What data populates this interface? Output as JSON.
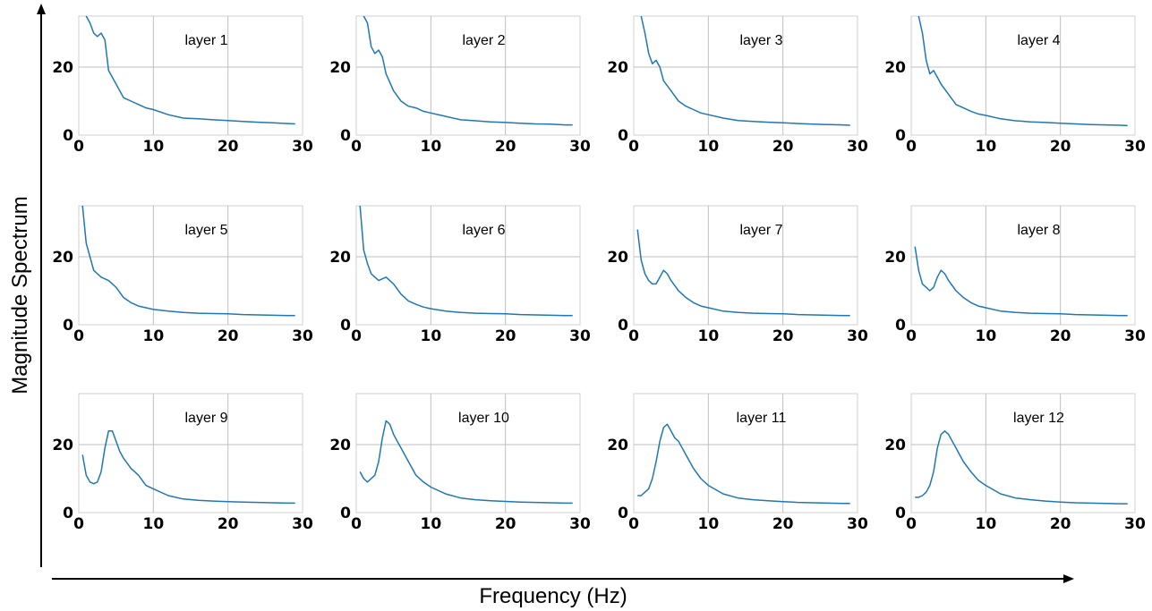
{
  "figure": {
    "xlabel": "Frequency (Hz)",
    "ylabel": "Magnitude Spectrum",
    "line_color": "#1f77b4",
    "grid": true,
    "xticks": [
      "0",
      "10",
      "20",
      "30"
    ],
    "yticks": [
      "0",
      "20"
    ]
  },
  "chart_data": [
    {
      "type": "line",
      "title": "layer 1",
      "xlim": [
        0,
        30
      ],
      "ylim": [
        0,
        35
      ],
      "x": [
        1.0,
        1.5,
        2.0,
        2.5,
        3.0,
        3.5,
        4.0,
        5.0,
        6.0,
        7.0,
        8.0,
        9.0,
        10.0,
        12.0,
        14.0,
        16.0,
        18.0,
        20.0,
        22.0,
        24.0,
        26.0,
        28.0,
        29.0
      ],
      "values": [
        35,
        33,
        30,
        29,
        30,
        28,
        19,
        15,
        11,
        10,
        9,
        8,
        7.5,
        6,
        5,
        4.8,
        4.5,
        4.3,
        4,
        3.8,
        3.6,
        3.4,
        3.3
      ]
    },
    {
      "type": "line",
      "title": "layer 2",
      "xlim": [
        0,
        30
      ],
      "ylim": [
        0,
        35
      ],
      "x": [
        1.0,
        1.5,
        2.0,
        2.5,
        3.0,
        3.5,
        4.0,
        5.0,
        6.0,
        7.0,
        8.0,
        9.0,
        10.0,
        12.0,
        14.0,
        16.0,
        18.0,
        20.0,
        22.0,
        24.0,
        26.0,
        28.0,
        29.0
      ],
      "values": [
        35,
        33,
        26,
        24,
        25,
        23,
        18,
        13,
        10,
        8.5,
        8,
        7,
        6.5,
        5.5,
        4.5,
        4.2,
        3.9,
        3.7,
        3.5,
        3.3,
        3.2,
        3.0,
        3.0
      ]
    },
    {
      "type": "line",
      "title": "layer 3",
      "xlim": [
        0,
        30
      ],
      "ylim": [
        0,
        35
      ],
      "x": [
        1.0,
        1.5,
        2.0,
        2.5,
        3.0,
        3.5,
        4.0,
        5.0,
        6.0,
        7.0,
        8.0,
        9.0,
        10.0,
        12.0,
        14.0,
        16.0,
        18.0,
        20.0,
        22.0,
        24.0,
        26.0,
        28.0,
        29.0
      ],
      "values": [
        35,
        30,
        24,
        21,
        22,
        20,
        16,
        13,
        10,
        8.5,
        7.5,
        6.5,
        6,
        5,
        4.3,
        4,
        3.8,
        3.6,
        3.4,
        3.2,
        3.1,
        3.0,
        2.9
      ]
    },
    {
      "type": "line",
      "title": "layer 4",
      "xlim": [
        0,
        30
      ],
      "ylim": [
        0,
        35
      ],
      "x": [
        1.0,
        1.5,
        2.0,
        2.5,
        3.0,
        3.5,
        4.0,
        5.0,
        6.0,
        7.0,
        8.0,
        9.0,
        10.0,
        12.0,
        14.0,
        16.0,
        18.0,
        20.0,
        22.0,
        24.0,
        26.0,
        28.0,
        29.0
      ],
      "values": [
        35,
        30,
        22,
        18,
        19,
        17,
        15,
        12,
        9,
        8,
        7,
        6.2,
        5.8,
        4.8,
        4.2,
        3.9,
        3.7,
        3.5,
        3.3,
        3.1,
        3.0,
        2.9,
        2.8
      ]
    },
    {
      "type": "line",
      "title": "layer 5",
      "xlim": [
        0,
        30
      ],
      "ylim": [
        0,
        35
      ],
      "x": [
        0.5,
        1.0,
        1.5,
        2.0,
        2.5,
        3.0,
        4.0,
        5.0,
        6.0,
        7.0,
        8.0,
        9.0,
        10.0,
        12.0,
        14.0,
        16.0,
        18.0,
        20.0,
        22.0,
        24.0,
        26.0,
        28.0,
        29.0
      ],
      "values": [
        35,
        24,
        20,
        16,
        15,
        14,
        13,
        11,
        8,
        6.5,
        5.5,
        5,
        4.5,
        4,
        3.6,
        3.4,
        3.3,
        3.2,
        3.0,
        2.9,
        2.8,
        2.7,
        2.7
      ]
    },
    {
      "type": "line",
      "title": "layer 6",
      "xlim": [
        0,
        30
      ],
      "ylim": [
        0,
        35
      ],
      "x": [
        0.5,
        1.0,
        1.5,
        2.0,
        2.5,
        3.0,
        4.0,
        5.0,
        6.0,
        7.0,
        8.0,
        9.0,
        10.0,
        12.0,
        14.0,
        16.0,
        18.0,
        20.0,
        22.0,
        24.0,
        26.0,
        28.0,
        29.0
      ],
      "values": [
        35,
        22,
        18,
        15,
        14,
        13,
        14,
        12,
        9,
        7,
        6,
        5.2,
        4.7,
        4,
        3.6,
        3.4,
        3.3,
        3.2,
        3.0,
        2.9,
        2.8,
        2.7,
        2.7
      ]
    },
    {
      "type": "line",
      "title": "layer 7",
      "xlim": [
        0,
        30
      ],
      "ylim": [
        0,
        35
      ],
      "x": [
        0.5,
        1.0,
        1.5,
        2.0,
        2.5,
        3.0,
        3.5,
        4.0,
        4.5,
        5.0,
        6.0,
        7.0,
        8.0,
        9.0,
        10.0,
        12.0,
        14.0,
        16.0,
        18.0,
        20.0,
        22.0,
        24.0,
        26.0,
        28.0,
        29.0
      ],
      "values": [
        28,
        19,
        15,
        13,
        12,
        12,
        14,
        16,
        15,
        13,
        10,
        8,
        6.5,
        5.5,
        5,
        4,
        3.6,
        3.4,
        3.3,
        3.2,
        3.0,
        2.9,
        2.8,
        2.7,
        2.7
      ]
    },
    {
      "type": "line",
      "title": "layer 8",
      "xlim": [
        0,
        30
      ],
      "ylim": [
        0,
        35
      ],
      "x": [
        0.5,
        1.0,
        1.5,
        2.0,
        2.5,
        3.0,
        3.5,
        4.0,
        4.5,
        5.0,
        6.0,
        7.0,
        8.0,
        9.0,
        10.0,
        12.0,
        14.0,
        16.0,
        18.0,
        20.0,
        22.0,
        24.0,
        26.0,
        28.0,
        29.0
      ],
      "values": [
        23,
        16,
        12,
        11,
        10,
        11,
        14,
        16,
        15,
        13,
        10,
        8,
        6.5,
        5.5,
        5,
        4,
        3.6,
        3.4,
        3.3,
        3.2,
        3.0,
        2.9,
        2.8,
        2.7,
        2.7
      ]
    },
    {
      "type": "line",
      "title": "layer 9",
      "xlim": [
        0,
        30
      ],
      "ylim": [
        0,
        35
      ],
      "x": [
        0.5,
        1.0,
        1.5,
        2.0,
        2.5,
        3.0,
        3.5,
        4.0,
        4.5,
        5.0,
        5.5,
        6.0,
        7.0,
        8.0,
        9.0,
        10.0,
        12.0,
        14.0,
        16.0,
        18.0,
        20.0,
        22.0,
        24.0,
        26.0,
        28.0,
        29.0
      ],
      "values": [
        17,
        11,
        9,
        8.5,
        9,
        12,
        19,
        24,
        24,
        21,
        18,
        16,
        13,
        11,
        8,
        7,
        5,
        4,
        3.6,
        3.4,
        3.2,
        3.1,
        3.0,
        2.9,
        2.8,
        2.8
      ]
    },
    {
      "type": "line",
      "title": "layer 10",
      "xlim": [
        0,
        30
      ],
      "ylim": [
        0,
        35
      ],
      "x": [
        0.5,
        1.0,
        1.5,
        2.0,
        2.5,
        3.0,
        3.5,
        4.0,
        4.5,
        5.0,
        5.5,
        6.0,
        7.0,
        8.0,
        9.0,
        10.0,
        12.0,
        14.0,
        16.0,
        18.0,
        20.0,
        22.0,
        24.0,
        26.0,
        28.0,
        29.0
      ],
      "values": [
        12,
        10,
        9,
        10,
        11,
        15,
        22,
        27,
        26,
        23,
        21,
        19,
        15,
        11,
        9,
        7.5,
        5.5,
        4.3,
        3.8,
        3.5,
        3.3,
        3.1,
        3.0,
        2.9,
        2.8,
        2.8
      ]
    },
    {
      "type": "line",
      "title": "layer 11",
      "xlim": [
        0,
        30
      ],
      "ylim": [
        0,
        35
      ],
      "x": [
        0.5,
        1.0,
        1.5,
        2.0,
        2.5,
        3.0,
        3.5,
        4.0,
        4.5,
        5.0,
        5.5,
        6.0,
        7.0,
        8.0,
        9.0,
        10.0,
        12.0,
        14.0,
        16.0,
        18.0,
        20.0,
        22.0,
        24.0,
        26.0,
        28.0,
        29.0
      ],
      "values": [
        5,
        5,
        6,
        7,
        10,
        15,
        21,
        25,
        26,
        24,
        22,
        21,
        17,
        13,
        10,
        8,
        5.5,
        4.3,
        3.8,
        3.5,
        3.2,
        3.0,
        2.9,
        2.8,
        2.7,
        2.7
      ]
    },
    {
      "type": "line",
      "title": "layer 12",
      "xlim": [
        0,
        30
      ],
      "ylim": [
        0,
        35
      ],
      "x": [
        0.5,
        1.0,
        1.5,
        2.0,
        2.5,
        3.0,
        3.5,
        4.0,
        4.5,
        5.0,
        5.5,
        6.0,
        7.0,
        8.0,
        9.0,
        10.0,
        12.0,
        14.0,
        16.0,
        18.0,
        20.0,
        22.0,
        24.0,
        26.0,
        28.0,
        29.0
      ],
      "values": [
        4.5,
        4.5,
        5,
        6,
        8,
        12,
        19,
        23,
        24,
        23,
        21,
        19,
        15,
        12,
        9.5,
        8,
        5.5,
        4.3,
        3.8,
        3.4,
        3.1,
        2.9,
        2.8,
        2.7,
        2.6,
        2.6
      ]
    }
  ]
}
